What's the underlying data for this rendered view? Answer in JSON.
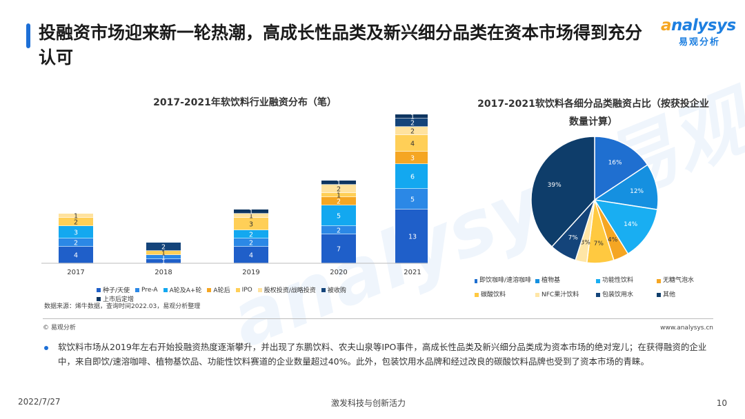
{
  "header": {
    "title": "投融资市场迎来新一轮热潮，高成长性品类及新兴细分品类在资本市场得到充分认可",
    "logo_en_mark": "a",
    "logo_en_rest": "nalysys",
    "logo_cn": "易观分析"
  },
  "watermark": "analysys 易观分析",
  "colors": {
    "seed": "#1f5fc9",
    "preA": "#2b88e6",
    "ab": "#13a8f0",
    "a_after": "#f5a623",
    "ipo": "#ffcf57",
    "equity": "#ffe29e",
    "acquired": "#14447a",
    "post_ipo": "#0e3560"
  },
  "chart_data": [
    {
      "type": "bar",
      "stacked": true,
      "title": "2017-2021年软饮料行业融资分布（笔）",
      "categories": [
        "2017",
        "2018",
        "2019",
        "2020",
        "2021"
      ],
      "series": [
        {
          "name": "种子/天使",
          "color_key": "seed",
          "values": [
            4,
            1,
            4,
            7,
            13
          ]
        },
        {
          "name": "Pre-A",
          "color_key": "preA",
          "values": [
            2,
            1,
            2,
            2,
            5
          ]
        },
        {
          "name": "A轮及A+轮",
          "color_key": "ab",
          "values": [
            3,
            0,
            2,
            5,
            6
          ]
        },
        {
          "name": "A轮后",
          "color_key": "a_after",
          "values": [
            0,
            0,
            0,
            2,
            3
          ]
        },
        {
          "name": "IPO",
          "color_key": "ipo",
          "values": [
            2,
            1,
            3,
            1,
            4
          ]
        },
        {
          "name": "股权投资/战略投资",
          "color_key": "equity",
          "values": [
            1,
            0,
            1,
            2,
            2
          ]
        },
        {
          "name": "被收购",
          "color_key": "acquired",
          "values": [
            0,
            2,
            0,
            0,
            2
          ]
        },
        {
          "name": "上市后定增",
          "color_key": "post_ipo",
          "values": [
            0,
            0,
            1,
            1,
            1
          ]
        }
      ]
    },
    {
      "type": "pie",
      "title": "2017-2021软饮料各细分品类融资占比（按获投企业数量计算）",
      "slices": [
        {
          "name": "即饮咖啡/速溶咖啡",
          "value": 16,
          "label": "16%",
          "color": "#1f6fd0"
        },
        {
          "name": "植物基",
          "value": 12,
          "label": "12%",
          "color": "#1590e0"
        },
        {
          "name": "功能性饮料",
          "value": 14,
          "label": "14%",
          "color": "#19aef2"
        },
        {
          "name": "无糖气泡水",
          "value": 4,
          "label": "4%",
          "color": "#f5a623"
        },
        {
          "name": "碳酸饮料",
          "value": 7,
          "label": "7%",
          "color": "#ffc940"
        },
        {
          "name": "NFC果汁饮料",
          "value": 3,
          "label": "3%",
          "color": "#ffe6a6"
        },
        {
          "name": "包装饮用水",
          "value": 7,
          "label": "7%",
          "color": "#14447a"
        },
        {
          "name": "其他",
          "value": 39,
          "label": "39%",
          "color": "#0e3d6a"
        }
      ]
    }
  ],
  "source": "数据来源：烯牛数据，查询时间2022.03，易观分析整理",
  "footer": {
    "copyright": "© 易观分析",
    "website": "www.analysys.cn",
    "date": "2022/7/27",
    "center": "激发科技与创新活力",
    "page": "10"
  },
  "body_text": "软饮料市场从2019年左右开始投融资热度逐渐攀升，并出现了东鹏饮料、农夫山泉等IPO事件，高成长性品类及新兴细分品类成为资本市场的绝对宠儿；在获得融资的企业中，来自即饮/速溶咖啡、植物基饮品、功能性饮料赛道的企业数量超过40%。此外，包装饮用水品牌和经过改良的碳酸饮料品牌也受到了资本市场的青睐。"
}
